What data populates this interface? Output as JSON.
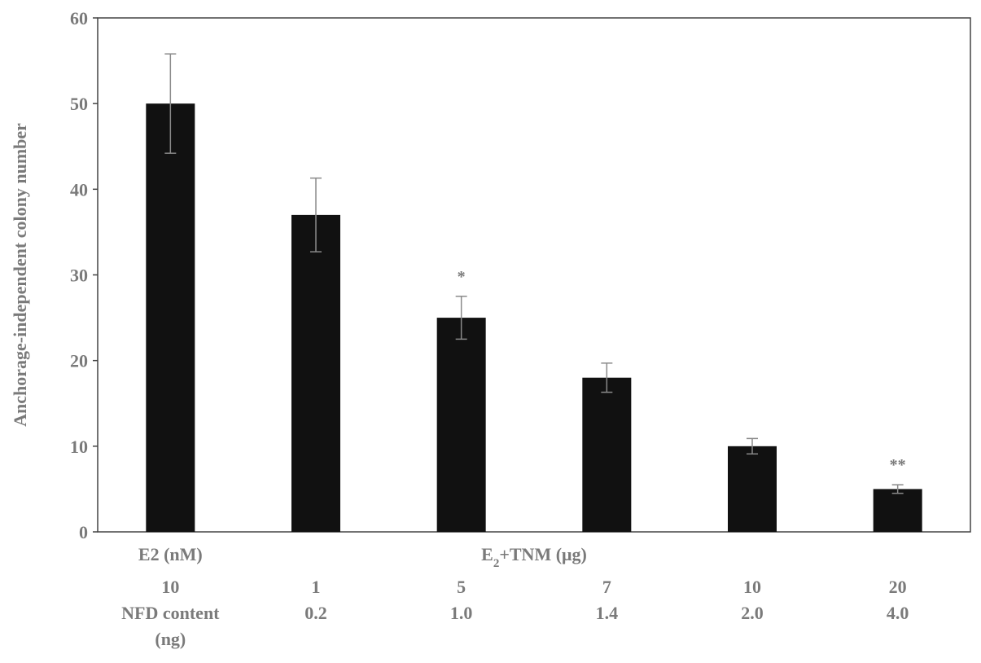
{
  "chart_data": {
    "type": "bar",
    "ylabel": "Anchorage-independent colony number",
    "ylim": [
      0,
      60
    ],
    "yticks": [
      0,
      10,
      20,
      30,
      40,
      50,
      60
    ],
    "grid": false,
    "legend": "none",
    "bar_color": "#111111",
    "error_color": "#8a8a8a",
    "group_labels": {
      "first": "E2 (nM)",
      "second_main": "E",
      "second_sub": "2",
      "second_rest": "+TNM (μg)"
    },
    "row_label": "NFD content",
    "row_label_unit": "(ng)",
    "categories": [
      "10",
      "1",
      "5",
      "7",
      "10",
      "20"
    ],
    "nfd_content": [
      "",
      "0.2",
      "1.0",
      "1.4",
      "2.0",
      "4.0"
    ],
    "values": [
      50,
      37,
      25,
      18,
      10,
      5
    ],
    "errors": [
      5.8,
      4.3,
      2.5,
      1.7,
      0.9,
      0.5
    ],
    "significance": [
      "",
      "",
      "*",
      "",
      "",
      "**"
    ]
  }
}
